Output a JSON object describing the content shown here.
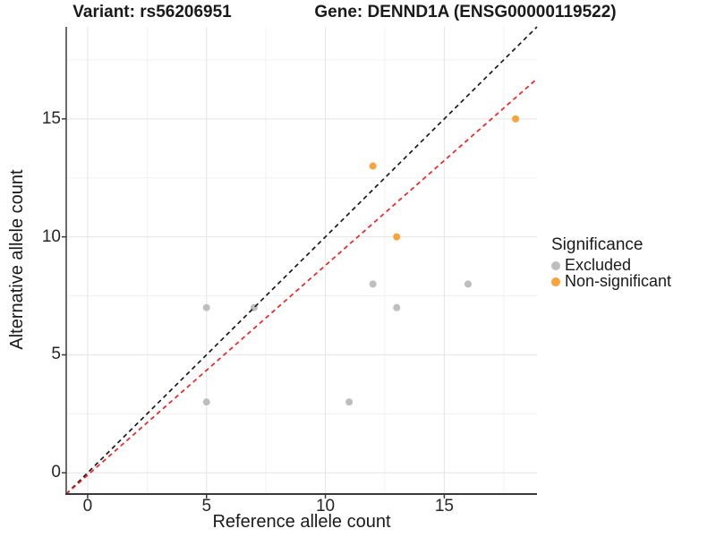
{
  "titles": {
    "variant": "Variant: rs56206951",
    "gene": "Gene: DENND1A (ENSG00000119522)"
  },
  "chart_data": {
    "type": "scatter",
    "xlabel": "Reference allele count",
    "ylabel": "Alternative allele count",
    "xlim": [
      -0.9,
      18.9
    ],
    "ylim": [
      -0.9,
      18.9
    ],
    "x_ticks": [
      0,
      5,
      10,
      15
    ],
    "y_ticks": [
      0,
      5,
      10,
      15
    ],
    "x_minor_ticks": [
      2.5,
      7.5,
      12.5,
      17.5
    ],
    "y_minor_ticks": [
      2.5,
      7.5,
      12.5,
      17.5
    ],
    "grid": "major+minor",
    "legend": {
      "title": "Significance",
      "position": "right",
      "entries": [
        {
          "label": "Excluded",
          "color": "#BEBEBE"
        },
        {
          "label": "Non-significant",
          "color": "#F9A33A"
        }
      ]
    },
    "series": [
      {
        "name": "Excluded",
        "color": "#BEBEBE",
        "points": [
          [
            5,
            3
          ],
          [
            5,
            7
          ],
          [
            7,
            7
          ],
          [
            11,
            3
          ],
          [
            12,
            8
          ],
          [
            13,
            7
          ],
          [
            16,
            8
          ]
        ]
      },
      {
        "name": "Non-significant",
        "color": "#F9A33A",
        "points": [
          [
            12,
            13
          ],
          [
            13,
            10
          ],
          [
            18,
            15
          ]
        ]
      }
    ],
    "lines": [
      {
        "name": "identity-line",
        "color": "#1A1A1A",
        "style": "dashed",
        "slope": 1,
        "intercept": 0,
        "points": [
          [
            -0.9,
            -0.9
          ],
          [
            18.9,
            18.9
          ]
        ]
      },
      {
        "name": "fitted-line",
        "color": "#EE2222",
        "style": "dashed",
        "slope": 0.89,
        "intercept": -0.1,
        "points": [
          [
            -0.9,
            -0.9
          ],
          [
            18.9,
            16.7
          ]
        ]
      }
    ]
  },
  "colors": {
    "grid_major": "#E4E4E4",
    "grid_minor": "#F1F1F1",
    "axis": "#3A3A3A",
    "text": "#1A1A1A"
  }
}
